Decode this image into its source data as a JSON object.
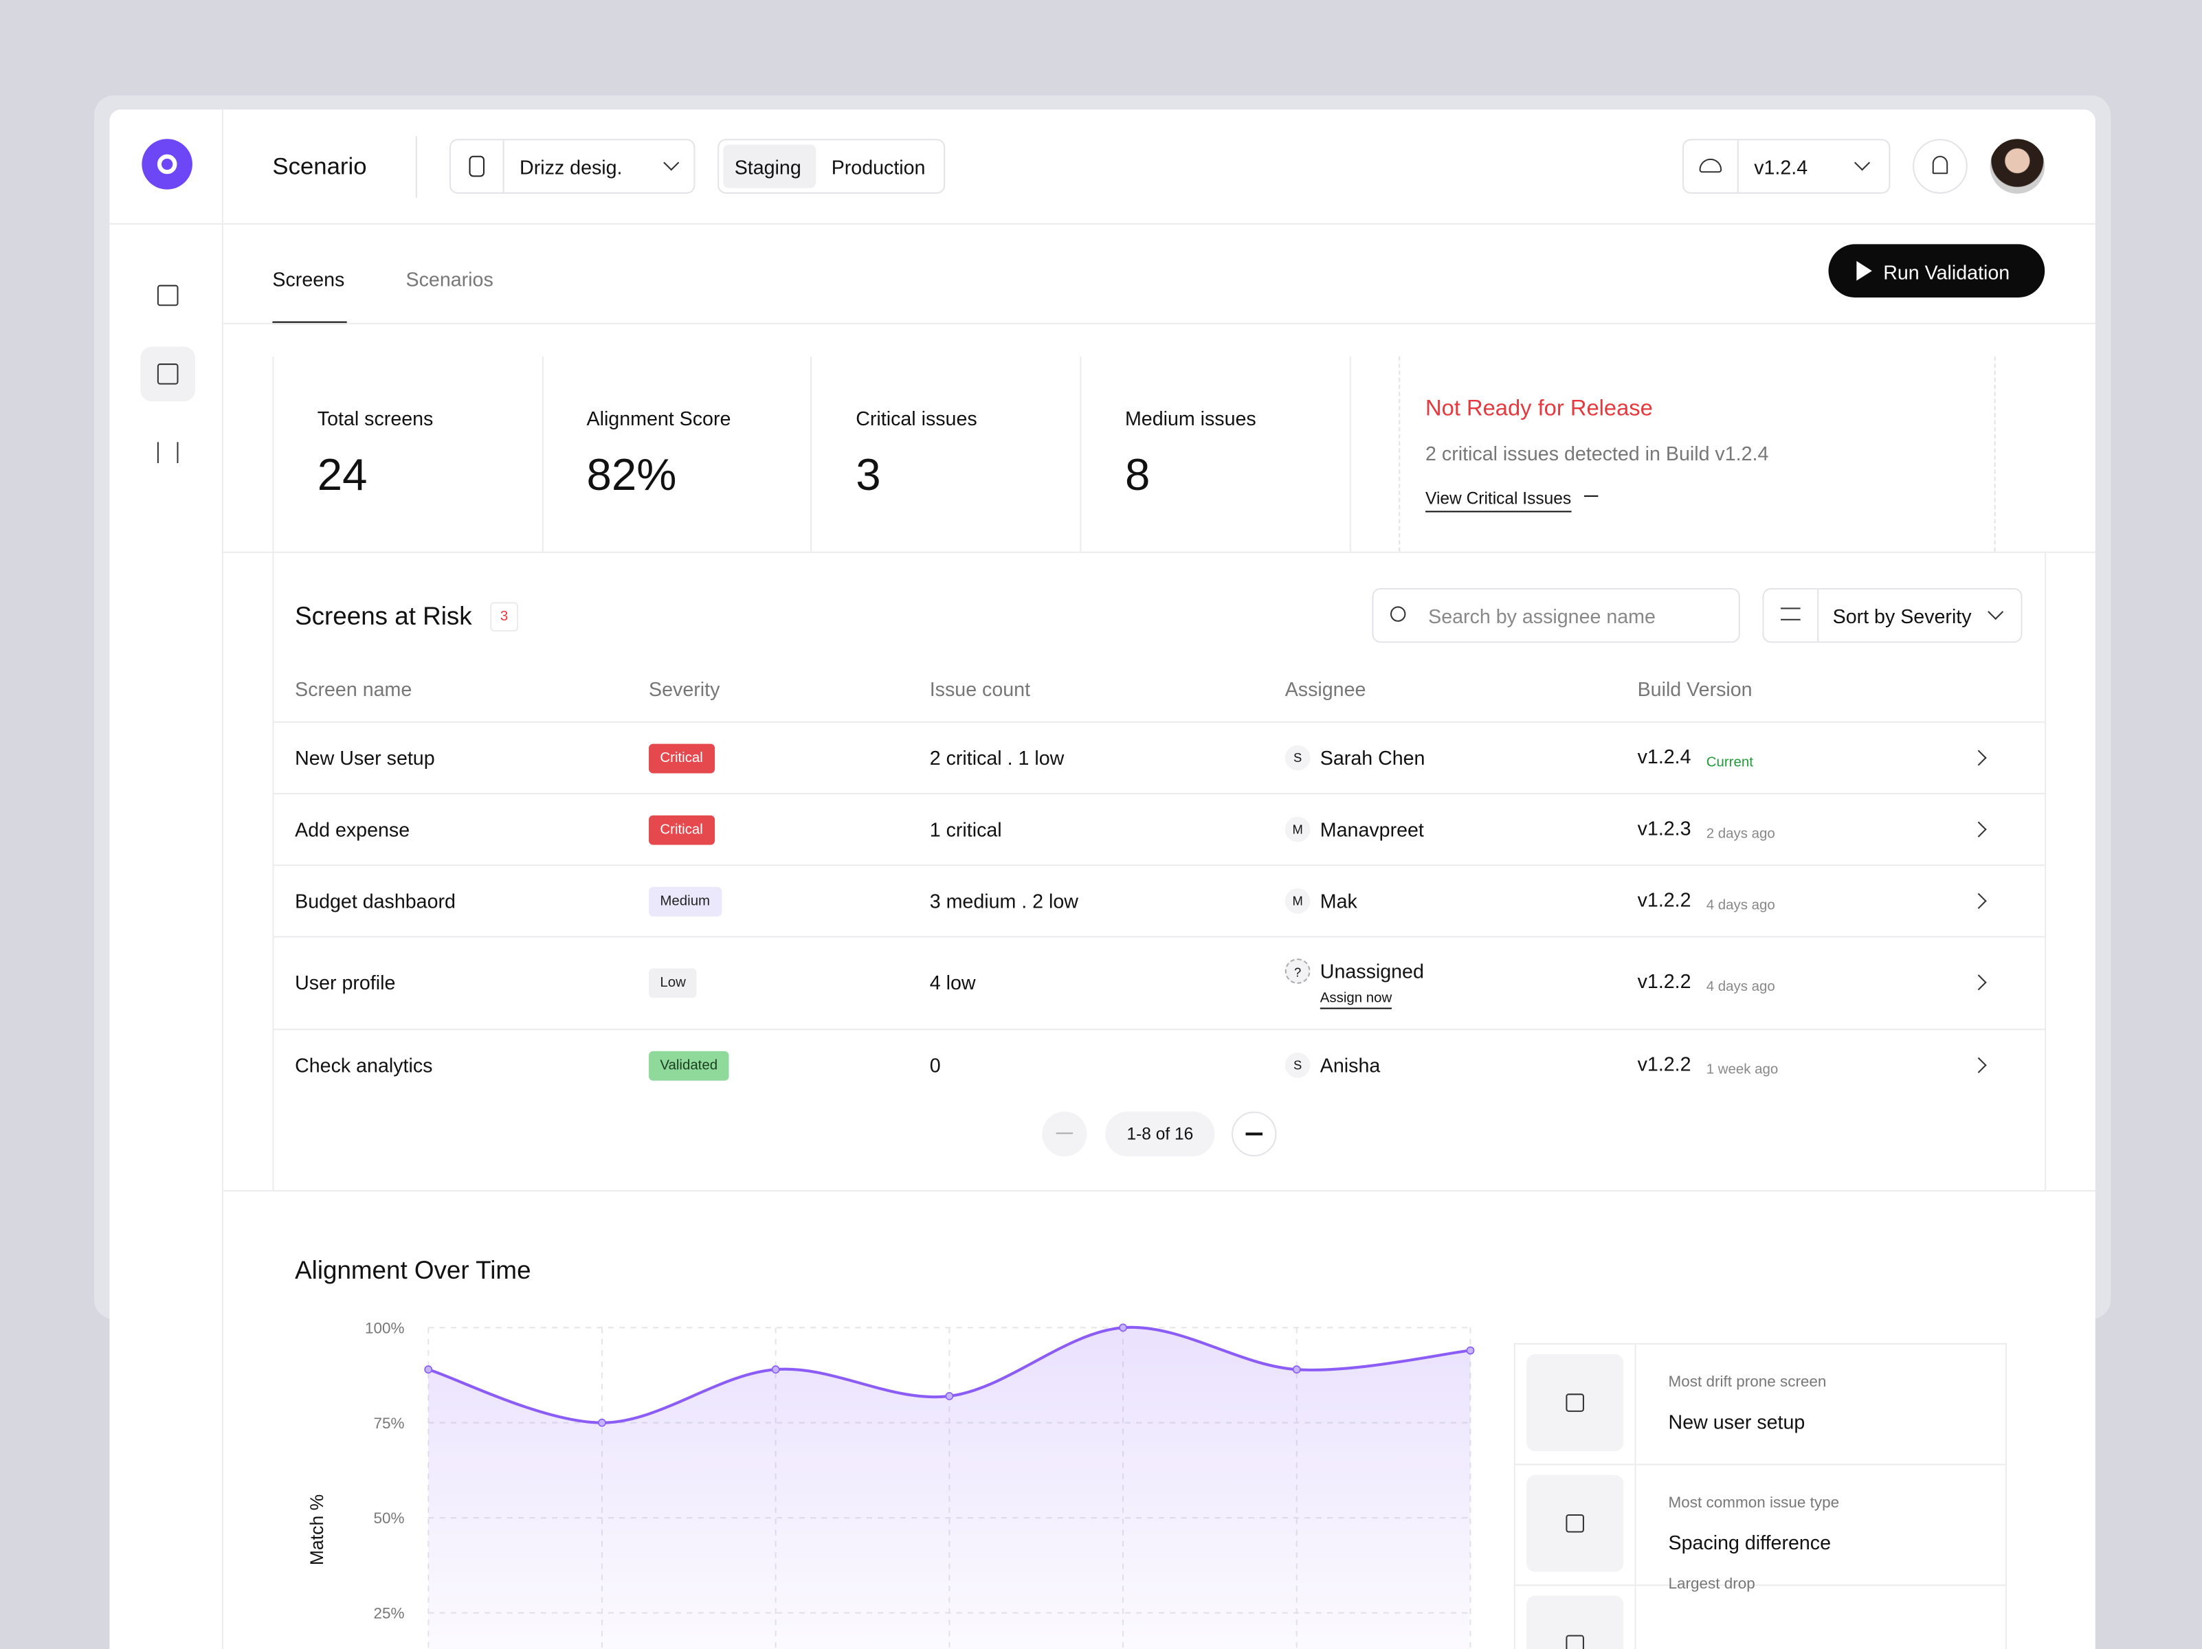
{
  "header": {
    "brand": "Scenario",
    "project": "Drizz desig.",
    "environments": [
      "Staging",
      "Production"
    ],
    "version": "v1.2.4"
  },
  "tabs": [
    "Screens",
    "Scenarios"
  ],
  "run_button": "Run Validation",
  "stats": [
    {
      "label": "Total screens",
      "value": "24"
    },
    {
      "label": "Alignment Score",
      "value": "82%"
    },
    {
      "label": "Critical issues",
      "value": "3"
    },
    {
      "label": "Medium issues",
      "value": "8"
    }
  ],
  "release": {
    "title": "Not Ready for Release",
    "detail": "2 critical issues detected in Build v1.2.4",
    "link": "View Critical Issues"
  },
  "risk": {
    "title": "Screens at Risk",
    "count": "3",
    "search_placeholder": "Search by assignee name",
    "sort": "Sort by Severity",
    "columns": [
      "Screen name",
      "Severity",
      "Issue count",
      "Assignee",
      "Build Version"
    ],
    "rows": [
      {
        "screen": "New User setup",
        "severity": "Critical",
        "badge_color": "#e5484d",
        "badge_text_color": "#ffffff",
        "issues": "2 critical . 1 low",
        "initial": "S",
        "assignee": "Sarah Chen",
        "build": "v1.2.4",
        "note": "Current",
        "note_color": "#1f9d3a"
      },
      {
        "screen": "Add expense",
        "severity": "Critical",
        "badge_color": "#e5484d",
        "badge_text_color": "#ffffff",
        "issues": "1 critical",
        "initial": "M",
        "assignee": "Manavpreet",
        "build": "v1.2.3",
        "note": "2 days ago",
        "note_color": "#888888"
      },
      {
        "screen": "Budget dashbaord",
        "severity": "Medium",
        "badge_color": "#ece8fb",
        "badge_text_color": "#222222",
        "issues": "3 medium . 2 low",
        "initial": "M",
        "assignee": "Mak",
        "build": "v1.2.2",
        "note": "4 days ago",
        "note_color": "#888888"
      },
      {
        "screen": "User profile",
        "severity": "Low",
        "badge_color": "#f0f0f2",
        "badge_text_color": "#222222",
        "issues": "4 low",
        "initial": "?",
        "assignee": "Unassigned",
        "assign_link": "Assign now",
        "build": "v1.2.2",
        "note": "4 days ago",
        "note_color": "#888888"
      },
      {
        "screen": "Check analytics",
        "severity": "Validated",
        "badge_color": "#8fd99a",
        "badge_text_color": "#1a3d20",
        "issues": "0",
        "initial": "S",
        "assignee": "Anisha",
        "build": "v1.2.2",
        "note": "1 week ago",
        "note_color": "#888888"
      }
    ],
    "pagination": "1-8 of 16"
  },
  "chart_data": {
    "type": "line",
    "title": "Alignment Over Time",
    "y_label": "Match %",
    "values": [
      89,
      75,
      89,
      82,
      100,
      89,
      94
    ],
    "color": "#8b5cf6",
    "ylim": [
      0,
      100
    ],
    "yticks": [
      {
        "value": 25,
        "label": "25%"
      },
      {
        "value": 50,
        "label": "50%"
      },
      {
        "value": 75,
        "label": "75%"
      },
      {
        "value": 100,
        "label": "100%"
      }
    ],
    "grid": true
  },
  "insights": [
    {
      "label": "Most drift prone screen",
      "value": "New user setup"
    },
    {
      "label": "Most common issue type",
      "value": "Spacing difference"
    },
    {
      "label": "Largest drop"
    }
  ]
}
